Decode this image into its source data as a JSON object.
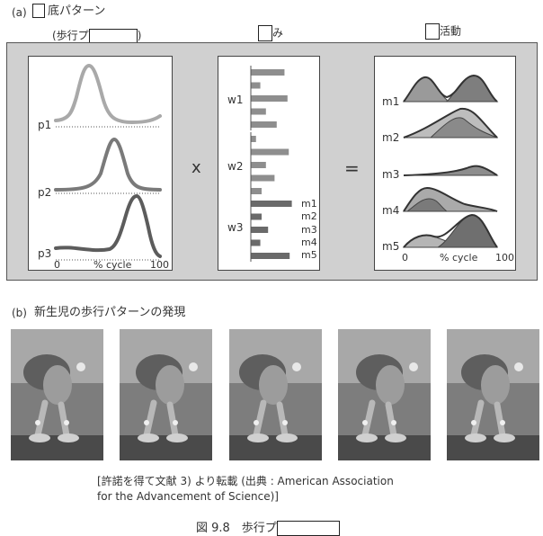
{
  "figure": {
    "a_label": "(a)",
    "a_title_suffix": "底パターン",
    "col1_prefix": "(歩行プ",
    "col1_suffix": ")",
    "col2_suffix": "み",
    "col3_suffix": "活動",
    "operator_times": "x",
    "operator_equals": "=",
    "b_label": "(b)",
    "b_title": "新生児の歩行パターンの発現",
    "credit_line1": "[許諾を得て文献 3) より転載 (出典 : American Association",
    "credit_line2": "for the Advancement of Science)]",
    "caption_prefix": "図 9.8　歩行プ"
  },
  "panel_patterns": {
    "labels": [
      "p1",
      "p2",
      "p3"
    ],
    "x_start": "0",
    "x_label": "% cycle",
    "x_end": "100",
    "colors": [
      "#a9a9a9",
      "#7a7a7a",
      "#5c5c5c"
    ]
  },
  "panel_weights": {
    "groups": [
      {
        "label": "w1",
        "values": [
          0.78,
          0.22,
          0.85,
          0.35,
          0.6
        ]
      },
      {
        "label": "w2",
        "values": [
          0.12,
          0.88,
          0.35,
          0.55,
          0.25
        ]
      },
      {
        "label": "w3",
        "values": [
          0.95,
          0.25,
          0.4,
          0.22,
          0.9
        ]
      }
    ],
    "muscle_labels": [
      "m1",
      "m2",
      "m3",
      "m4",
      "m5"
    ]
  },
  "panel_activity": {
    "labels": [
      "m1",
      "m2",
      "m3",
      "m4",
      "m5"
    ],
    "x_start": "0",
    "x_label": "% cycle",
    "x_end": "100"
  }
}
